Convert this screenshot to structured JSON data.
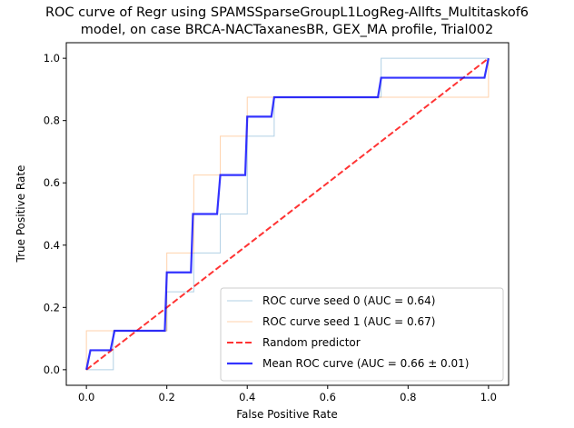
{
  "chart_data": {
    "type": "line",
    "title_line1": "ROC curve of Regr using SPAMSSparseGroupL1LogReg-Allfts_Multitaskof6",
    "title_line2": "model, on case BRCA-NACTaxanesBR, GEX_MA profile,  Trial002",
    "xlabel": "False Positive Rate",
    "ylabel": "True Positive Rate",
    "xlim": [
      -0.05,
      1.05
    ],
    "ylim": [
      -0.05,
      1.05
    ],
    "xticks": [
      "0.0",
      "0.2",
      "0.4",
      "0.6",
      "0.8",
      "1.0"
    ],
    "yticks": [
      "0.0",
      "0.2",
      "0.4",
      "0.6",
      "0.8",
      "1.0"
    ],
    "grid": false,
    "legend_position": "lower-right",
    "series": [
      {
        "name": "ROC curve seed 0 (AUC = 0.64)",
        "color": "#1f77b4",
        "x": [
          0,
          0,
          0.067,
          0.067,
          0.2,
          0.2,
          0.267,
          0.267,
          0.333,
          0.333,
          0.4,
          0.4,
          0.467,
          0.467,
          0.733,
          0.733,
          1.0
        ],
        "y": [
          0,
          0.0,
          0.0,
          0.125,
          0.125,
          0.25,
          0.25,
          0.375,
          0.375,
          0.5,
          0.5,
          0.75,
          0.75,
          0.875,
          0.875,
          1.0,
          1.0
        ]
      },
      {
        "name": "ROC curve seed 1 (AUC = 0.67)",
        "color": "#ff7f0e",
        "x": [
          0,
          0,
          0.2,
          0.2,
          0.267,
          0.267,
          0.333,
          0.333,
          0.4,
          0.4,
          0.467,
          0.467,
          0.733,
          0.733,
          1.0,
          1.0
        ],
        "y": [
          0,
          0.125,
          0.125,
          0.375,
          0.375,
          0.625,
          0.625,
          0.75,
          0.75,
          0.875,
          0.875,
          0.875,
          0.875,
          0.875,
          0.875,
          1.0
        ]
      },
      {
        "name": "Random predictor",
        "color": "#ff0000",
        "x": [
          0,
          1
        ],
        "y": [
          0,
          1
        ]
      },
      {
        "name": "Mean ROC curve (AUC = 0.66 ± 0.01)",
        "color": "#0000ff",
        "x": [
          0,
          0.01,
          0.06,
          0.07,
          0.195,
          0.2,
          0.26,
          0.265,
          0.325,
          0.333,
          0.395,
          0.4,
          0.46,
          0.467,
          0.725,
          0.733,
          0.99,
          1.0
        ],
        "y": [
          0,
          0.0625,
          0.0625,
          0.125,
          0.125,
          0.3125,
          0.3125,
          0.5,
          0.5,
          0.625,
          0.625,
          0.8125,
          0.8125,
          0.875,
          0.875,
          0.9375,
          0.9375,
          1.0
        ]
      }
    ]
  }
}
